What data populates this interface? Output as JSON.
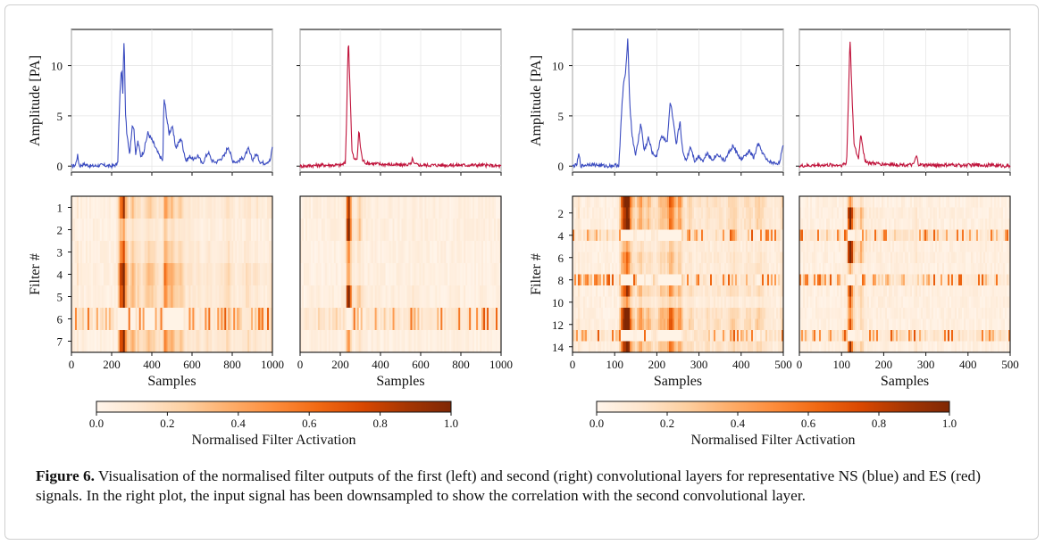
{
  "figure": {
    "caption_label": "Figure 6.",
    "caption_text": " Visualisation of the normalised filter outputs of the first (left) and second (right) convolutional layers for representative NS (blue) and ES (red) signals. In the right plot, the input signal has been downsampled to show the correlation with the second convolutional layer."
  },
  "colors": {
    "ns_signal": "#3b4cc0",
    "es_signal": "#c0143c",
    "colormap": [
      "#fff5eb",
      "#fee6ce",
      "#fdd0a2",
      "#fdae6b",
      "#fd8d3c",
      "#f16913",
      "#d94801",
      "#a63603",
      "#7f2704"
    ]
  },
  "chart_data": [
    {
      "type": "line",
      "panel": "layer1-ns-signal",
      "series": [
        {
          "color": "#3b4cc0",
          "x": [
            0,
            20,
            30,
            40,
            60,
            100,
            150,
            200,
            230,
            240,
            245,
            250,
            255,
            262,
            268,
            275,
            290,
            300,
            310,
            320,
            330,
            345,
            360,
            380,
            395,
            410,
            430,
            455,
            460,
            470,
            485,
            500,
            520,
            545,
            570,
            590,
            610,
            630,
            650,
            680,
            700,
            720,
            760,
            780,
            800,
            820,
            860,
            880,
            900,
            920,
            940,
            960,
            990,
            1000
          ],
          "y": [
            0,
            0.1,
            1.1,
            0,
            0.2,
            0,
            0.1,
            0,
            0.2,
            6.5,
            8.7,
            9.6,
            7.0,
            13.0,
            5.8,
            3.5,
            1.2,
            3.6,
            4.1,
            1.0,
            2.5,
            1.0,
            1.5,
            3.3,
            2.8,
            2.2,
            1.3,
            0.5,
            6.8,
            5.5,
            3.2,
            4.0,
            1.8,
            2.8,
            0.5,
            1.0,
            0.6,
            1.1,
            0.2,
            1.4,
            0.5,
            0.4,
            1.0,
            2.0,
            0.6,
            0.4,
            0.9,
            1.7,
            0.6,
            1.2,
            0.4,
            0.3,
            0.6,
            2.0
          ]
        }
      ],
      "ylabel": "Amplitude [PA]",
      "yticks": [
        0,
        5,
        10
      ],
      "xlim": [
        0,
        1000
      ],
      "ylim": [
        -0.6,
        13.6
      ]
    },
    {
      "type": "line",
      "panel": "layer1-es-signal",
      "series": [
        {
          "color": "#c0143c",
          "x": [
            0,
            100,
            200,
            225,
            232,
            240,
            248,
            258,
            270,
            285,
            292,
            300,
            310,
            330,
            400,
            500,
            555,
            560,
            565,
            600,
            700,
            800,
            900,
            1000
          ],
          "y": [
            0,
            0.1,
            0.1,
            0.3,
            5.5,
            13.0,
            8.0,
            1.5,
            0.6,
            0.8,
            3.6,
            2.0,
            0.6,
            0.3,
            0.2,
            0.1,
            0.2,
            1.0,
            0.2,
            0.1,
            0.1,
            0.1,
            0.1,
            0
          ]
        }
      ],
      "xlim": [
        0,
        1000
      ],
      "ylim": [
        -0.6,
        13.6
      ]
    },
    {
      "type": "heatmap",
      "panel": "layer1-ns-filters",
      "ylabel": "Filter #",
      "xlabel": "Samples",
      "yticks": [
        1,
        2,
        3,
        4,
        5,
        6,
        7
      ],
      "xticks": [
        0,
        200,
        400,
        600,
        800,
        1000
      ],
      "xlim": [
        0,
        1000
      ],
      "rows": 7
    },
    {
      "type": "heatmap",
      "panel": "layer1-es-filters",
      "xlabel": "Samples",
      "xticks": [
        0,
        200,
        400,
        600,
        800,
        1000
      ],
      "xlim": [
        0,
        1000
      ],
      "rows": 7
    },
    {
      "type": "line",
      "panel": "layer2-ns-signal",
      "series": [
        {
          "color": "#3b4cc0",
          "x": [
            0,
            10,
            15,
            20,
            40,
            80,
            110,
            118,
            122,
            126,
            131,
            136,
            142,
            150,
            155,
            162,
            170,
            180,
            190,
            200,
            210,
            225,
            232,
            240,
            246,
            255,
            262,
            270,
            280,
            290,
            300,
            310,
            320,
            330,
            345,
            360,
            380,
            400,
            420,
            430,
            440,
            460,
            475,
            490,
            500
          ],
          "y": [
            0,
            0.1,
            1.2,
            0,
            0.2,
            0,
            0.1,
            6.5,
            8.6,
            9.0,
            13.0,
            6.0,
            2.8,
            1.1,
            2.3,
            4.3,
            1.5,
            2.8,
            1.2,
            1.0,
            3.0,
            2.5,
            6.5,
            4.0,
            2.0,
            4.5,
            1.2,
            0.6,
            2.0,
            0.5,
            1.0,
            0.5,
            1.4,
            0.6,
            1.2,
            0.5,
            2.0,
            0.6,
            1.5,
            0.8,
            2.2,
            0.6,
            0.3,
            0.3,
            2.0
          ]
        }
      ],
      "ylabel": "Amplitude [PA]",
      "yticks": [
        0,
        5,
        10
      ],
      "xlim": [
        0,
        500
      ],
      "ylim": [
        -0.6,
        13.6
      ]
    },
    {
      "type": "line",
      "panel": "layer2-es-signal",
      "series": [
        {
          "color": "#c0143c",
          "x": [
            0,
            50,
            100,
            112,
            116,
            120,
            124,
            130,
            140,
            146,
            150,
            155,
            165,
            200,
            270,
            278,
            282,
            290,
            350,
            400,
            450,
            500
          ],
          "y": [
            0,
            0.1,
            0.1,
            0.3,
            6.0,
            13.0,
            8.0,
            2.0,
            0.7,
            3.3,
            2.0,
            0.6,
            0.3,
            0.2,
            0.1,
            1.0,
            0.2,
            0.1,
            0.1,
            0.1,
            0.1,
            0
          ]
        }
      ],
      "xlim": [
        0,
        500
      ],
      "ylim": [
        -0.6,
        13.6
      ]
    },
    {
      "type": "heatmap",
      "panel": "layer2-ns-filters",
      "ylabel": "Filter #",
      "xlabel": "Samples",
      "yticks": [
        2,
        4,
        6,
        8,
        10,
        12,
        14
      ],
      "xticks": [
        0,
        100,
        200,
        300,
        400,
        500
      ],
      "xlim": [
        0,
        500
      ],
      "rows": 14
    },
    {
      "type": "heatmap",
      "panel": "layer2-es-filters",
      "xlabel": "Samples",
      "xticks": [
        0,
        100,
        200,
        300,
        400,
        500
      ],
      "xlim": [
        0,
        500
      ],
      "rows": 14
    }
  ],
  "colorbars": [
    {
      "label": "Normalised Filter Activation",
      "ticks": [
        "0.0",
        "0.2",
        "0.4",
        "0.6",
        "0.8",
        "1.0"
      ]
    },
    {
      "label": "Normalised Filter Activation",
      "ticks": [
        "0.0",
        "0.2",
        "0.4",
        "0.6",
        "0.8",
        "1.0"
      ]
    }
  ]
}
